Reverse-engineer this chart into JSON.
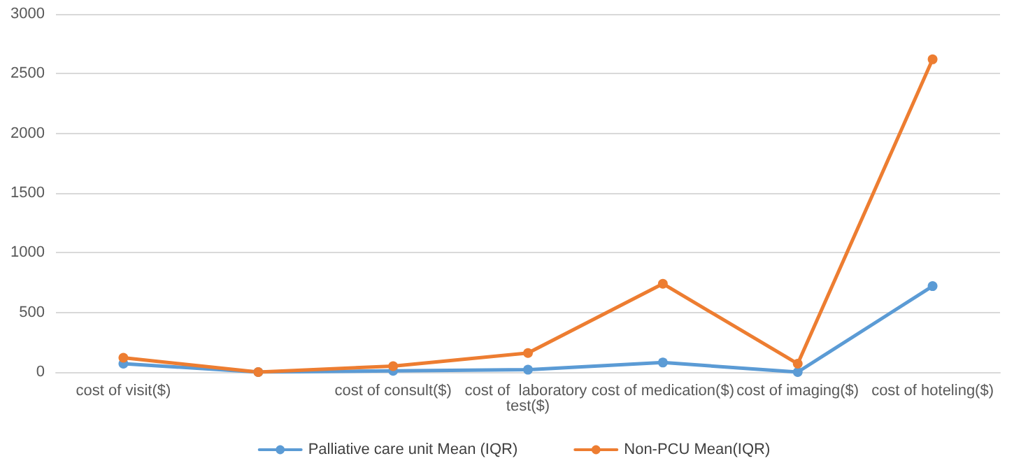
{
  "chart_data": {
    "type": "line",
    "categories": [
      "cost of visit($)",
      null,
      "cost of consult($)",
      "cost of  laboratory test($)",
      "cost of medication($)",
      "cost of imaging($)",
      "cost of hoteling($)"
    ],
    "series": [
      {
        "name": "Palliative care unit Mean (IQR)",
        "color": "#5b9bd5",
        "values": [
          70,
          0,
          10,
          20,
          80,
          0,
          720
        ]
      },
      {
        "name": "Non-PCU Mean(IQR)",
        "color": "#ed7d31",
        "values": [
          120,
          0,
          50,
          160,
          740,
          70,
          2620
        ]
      }
    ],
    "ylim": [
      0,
      3000
    ],
    "yticks": [
      0,
      500,
      1000,
      1500,
      2000,
      2500,
      3000
    ],
    "grid": "y",
    "legend": "bottom",
    "marker": "circle",
    "line_style": "solid"
  }
}
